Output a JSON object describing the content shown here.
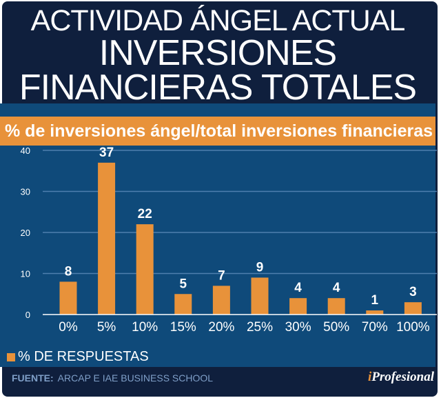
{
  "header": {
    "line1": "ACTIVIDAD ÁNGEL ACTUAL",
    "line2": "INVERSIONES",
    "line3": "FINANCIERAS TOTALES"
  },
  "chart_data": {
    "type": "bar",
    "title": "% de inversiones ángel/total inversiones financieras",
    "categories": [
      "0%",
      "5%",
      "10%",
      "15%",
      "20%",
      "25%",
      "30%",
      "50%",
      "70%",
      "100%"
    ],
    "series": [
      {
        "name": "% DE RESPUESTAS",
        "values": [
          8,
          37,
          22,
          5,
          7,
          9,
          4,
          4,
          1,
          3
        ]
      }
    ],
    "ylim": [
      0,
      40
    ],
    "yticks": [
      0,
      10,
      20,
      30,
      40
    ],
    "grid": true,
    "legend": "bottom-left",
    "bar_color": "#e8923a"
  },
  "footer": {
    "source_label": "FUENTE:",
    "source_text": "ARCAP E IAE BUSINESS SCHOOL",
    "logo_i": "i",
    "logo_rest": "Profesional"
  }
}
